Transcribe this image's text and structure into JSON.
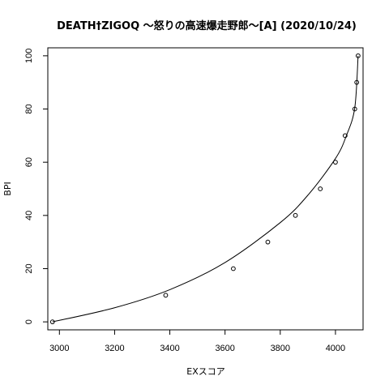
{
  "chart_data": {
    "type": "scatter",
    "title": "DEATH†ZIGOQ ～怒りの高速爆走野郎～[A] (2020/10/24)",
    "xlabel": "EXスコア",
    "ylabel": "BPI",
    "xlim": [
      2958,
      4100
    ],
    "ylim": [
      -3,
      103
    ],
    "xticks": [
      3000,
      3200,
      3400,
      3600,
      3800,
      4000
    ],
    "yticks": [
      0,
      20,
      40,
      60,
      80,
      100
    ],
    "grid": false,
    "points": [
      {
        "x": 2975,
        "y": 0
      },
      {
        "x": 3385,
        "y": 10
      },
      {
        "x": 3630,
        "y": 20
      },
      {
        "x": 3755,
        "y": 30
      },
      {
        "x": 3855,
        "y": 40
      },
      {
        "x": 3945,
        "y": 50
      },
      {
        "x": 4000,
        "y": 60
      },
      {
        "x": 4035,
        "y": 70
      },
      {
        "x": 4070,
        "y": 80
      },
      {
        "x": 4077,
        "y": 90
      },
      {
        "x": 4082,
        "y": 100
      }
    ],
    "curve": [
      {
        "x": 2975,
        "y": 0
      },
      {
        "x": 3200,
        "y": 5.3
      },
      {
        "x": 3400,
        "y": 12.1
      },
      {
        "x": 3600,
        "y": 22.3
      },
      {
        "x": 3800,
        "y": 37.3
      },
      {
        "x": 3900,
        "y": 47.6
      },
      {
        "x": 4000,
        "y": 61.4
      },
      {
        "x": 4040,
        "y": 70.1
      },
      {
        "x": 4070,
        "y": 80.5
      },
      {
        "x": 4082,
        "y": 100
      }
    ]
  }
}
